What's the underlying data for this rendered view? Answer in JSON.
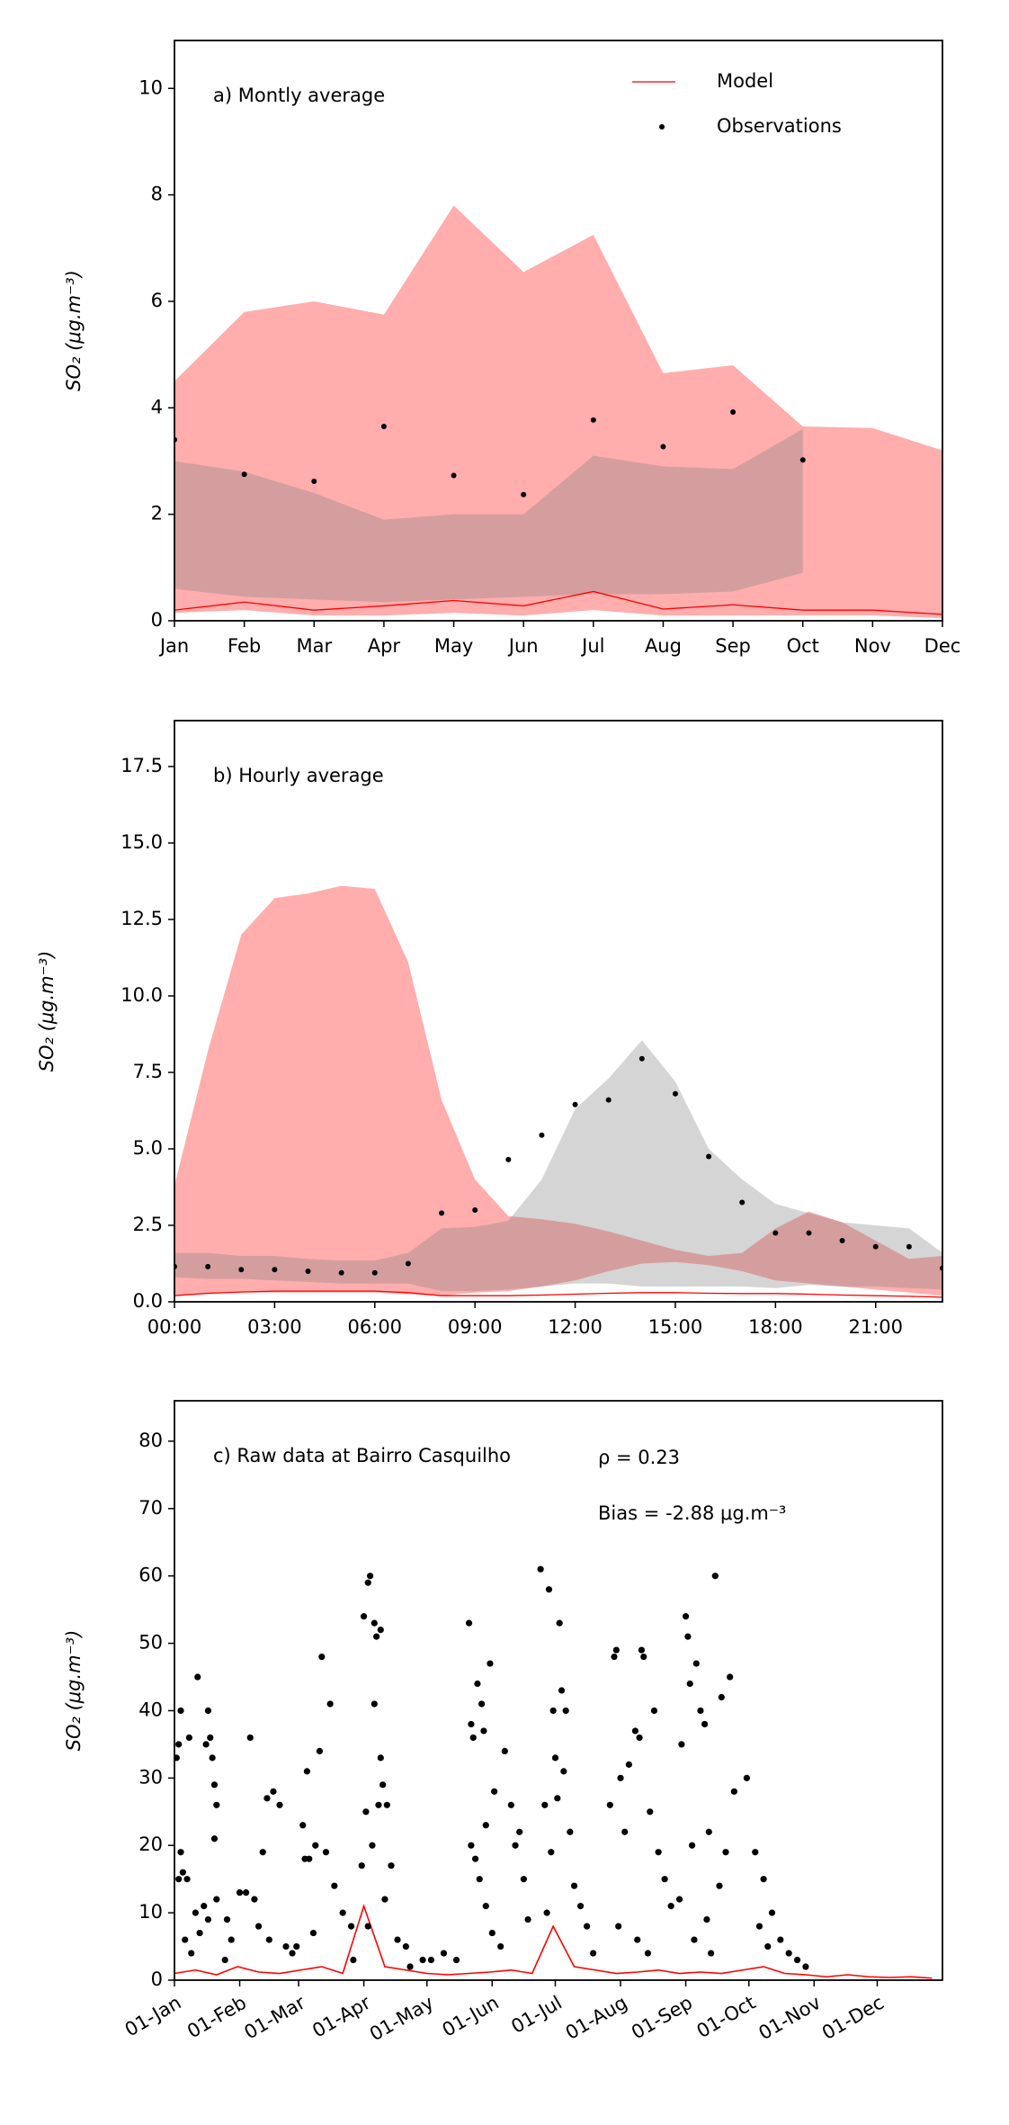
{
  "chart_data": [
    {
      "type": "band_line",
      "title": "a) Montly average",
      "ylabel": "SO₂ (μg.m⁻³)",
      "legend": "upper right",
      "categories": [
        "Jan",
        "Feb",
        "Mar",
        "Apr",
        "May",
        "Jun",
        "Jul",
        "Aug",
        "Sep",
        "Oct",
        "Nov",
        "Dec"
      ],
      "ylim": [
        0,
        10.9
      ],
      "yticks": [
        0,
        2,
        4,
        6,
        8,
        10
      ],
      "series": [
        {
          "kind": "band",
          "color": "#ff0000",
          "upper": [
            4.5,
            5.8,
            6.0,
            5.75,
            7.8,
            6.55,
            7.25,
            4.65,
            4.8,
            3.65,
            3.62,
            3.2
          ],
          "lower": [
            0.15,
            0.2,
            0.1,
            0.1,
            0.15,
            0.1,
            0.2,
            0.1,
            0.1,
            0.1,
            0.1,
            0.05
          ]
        },
        {
          "kind": "band",
          "color": "#808080",
          "upper": [
            3.0,
            2.8,
            2.4,
            1.9,
            2.0,
            2.0,
            3.1,
            2.9,
            2.85,
            3.6,
            null,
            null
          ],
          "lower": [
            0.6,
            0.45,
            0.4,
            0.35,
            0.4,
            0.45,
            0.5,
            0.5,
            0.55,
            0.9,
            null,
            null
          ]
        },
        {
          "kind": "line",
          "name": "Model",
          "color": "#ff0000",
          "values": [
            0.2,
            0.35,
            0.2,
            0.28,
            0.38,
            0.28,
            0.55,
            0.22,
            0.3,
            0.2,
            0.2,
            0.12
          ]
        },
        {
          "kind": "points",
          "name": "Observations",
          "color": "#000000",
          "values": [
            3.4,
            2.75,
            2.62,
            3.65,
            2.73,
            2.37,
            3.77,
            3.27,
            3.92,
            3.02,
            null,
            null
          ]
        }
      ]
    },
    {
      "type": "band_line",
      "title": "b) Hourly average",
      "ylabel": "SO₂ (μg.m⁻³)",
      "x": [
        0,
        1,
        2,
        3,
        4,
        5,
        6,
        7,
        8,
        9,
        10,
        11,
        12,
        13,
        14,
        15,
        16,
        17,
        18,
        19,
        20,
        21,
        22,
        23
      ],
      "xlim": [
        0,
        23
      ],
      "xticks": [
        {
          "value": 0,
          "label": "00:00"
        },
        {
          "value": 3,
          "label": "03:00"
        },
        {
          "value": 6,
          "label": "06:00"
        },
        {
          "value": 9,
          "label": "09:00"
        },
        {
          "value": 12,
          "label": "12:00"
        },
        {
          "value": 15,
          "label": "15:00"
        },
        {
          "value": 18,
          "label": "18:00"
        },
        {
          "value": 21,
          "label": "21:00"
        }
      ],
      "ylim": [
        0,
        19
      ],
      "yticks": [
        {
          "value": 0,
          "label": "0.0"
        },
        2.5,
        {
          "value": 5,
          "label": "5.0"
        },
        7.5,
        {
          "value": 10,
          "label": "10.0"
        },
        12.5,
        {
          "value": 15,
          "label": "15.0"
        },
        17.5
      ],
      "series": [
        {
          "kind": "band",
          "color": "#ff0000",
          "upper": [
            3.8,
            8.2,
            12.0,
            13.2,
            13.35,
            13.6,
            13.5,
            11.1,
            6.6,
            4.0,
            2.8,
            2.7,
            2.55,
            2.3,
            2.0,
            1.7,
            1.5,
            1.6,
            2.4,
            2.95,
            2.6,
            2.0,
            1.4,
            1.5
          ],
          "lower": [
            0.2,
            0.25,
            0.3,
            0.3,
            0.3,
            0.3,
            0.3,
            0.25,
            0.2,
            0.3,
            0.35,
            0.5,
            0.7,
            1.0,
            1.25,
            1.3,
            1.2,
            1.0,
            0.7,
            0.6,
            0.5,
            0.4,
            0.3,
            0.2
          ]
        },
        {
          "kind": "band",
          "color": "#808080",
          "upper": [
            1.6,
            1.6,
            1.5,
            1.5,
            1.4,
            1.35,
            1.35,
            1.6,
            2.4,
            2.45,
            2.65,
            4.0,
            6.3,
            7.3,
            8.55,
            7.2,
            5.0,
            4.0,
            3.2,
            2.9,
            2.6,
            2.5,
            2.4,
            1.6
          ],
          "lower": [
            0.8,
            0.75,
            0.75,
            0.7,
            0.65,
            0.6,
            0.6,
            0.6,
            0.35,
            0.35,
            0.4,
            0.5,
            0.6,
            0.6,
            0.5,
            0.5,
            0.5,
            0.5,
            0.45,
            0.55,
            0.5,
            0.5,
            0.45,
            0.4
          ]
        },
        {
          "kind": "line",
          "color": "#ff0000",
          "values": [
            0.2,
            0.28,
            0.32,
            0.35,
            0.35,
            0.35,
            0.35,
            0.3,
            0.2,
            0.2,
            0.2,
            0.22,
            0.25,
            0.28,
            0.3,
            0.3,
            0.28,
            0.27,
            0.27,
            0.25,
            0.22,
            0.2,
            0.18,
            0.15
          ]
        },
        {
          "kind": "points",
          "color": "#000000",
          "values": [
            1.15,
            1.15,
            1.05,
            1.05,
            1.0,
            0.95,
            0.95,
            1.25,
            2.9,
            3.0,
            4.65,
            5.45,
            6.45,
            6.6,
            7.95,
            6.8,
            4.75,
            3.25,
            2.25,
            2.25,
            2.0,
            1.8,
            1.8,
            1.1
          ]
        }
      ]
    },
    {
      "type": "band_line",
      "title": "c) Raw data at Bairro Casquilho",
      "ylabel": "SO₂ (μg.m⁻³)",
      "annotations": [
        "ρ = 0.23",
        "Bias = -2.88 μg.m⁻³"
      ],
      "xlim": [
        0,
        365
      ],
      "xticks": [
        {
          "value": 0,
          "label": "01-Jan"
        },
        {
          "value": 31,
          "label": "01-Feb"
        },
        {
          "value": 59,
          "label": "01-Mar"
        },
        {
          "value": 90,
          "label": "01-Apr"
        },
        {
          "value": 120,
          "label": "01-May"
        },
        {
          "value": 151,
          "label": "01-Jun"
        },
        {
          "value": 181,
          "label": "01-Jul"
        },
        {
          "value": 212,
          "label": "01-Aug"
        },
        {
          "value": 243,
          "label": "01-Sep"
        },
        {
          "value": 273,
          "label": "01-Oct"
        },
        {
          "value": 304,
          "label": "01-Nov"
        },
        {
          "value": 334,
          "label": "01-Dec"
        }
      ],
      "ylim": [
        0,
        86
      ],
      "yticks": [
        0,
        10,
        20,
        30,
        40,
        50,
        60,
        70,
        80
      ],
      "series": [
        {
          "kind": "line",
          "color": "#ff0000",
          "x": [
            0,
            10,
            20,
            30,
            40,
            50,
            60,
            70,
            80,
            90,
            100,
            110,
            120,
            130,
            140,
            150,
            160,
            170,
            180,
            190,
            200,
            210,
            220,
            230,
            240,
            250,
            260,
            270,
            280,
            290,
            300,
            310,
            320,
            330,
            340,
            350,
            360
          ],
          "values": [
            1,
            1.5,
            0.8,
            2,
            1.2,
            1,
            1.5,
            2,
            1,
            11,
            2,
            1.5,
            1,
            0.8,
            1,
            1.2,
            1.5,
            1,
            8,
            2,
            1.5,
            1,
            1.2,
            1.5,
            1,
            1.2,
            1,
            1.5,
            2,
            1,
            0.8,
            0.5,
            0.8,
            0.5,
            0.4,
            0.5,
            0.3
          ]
        },
        {
          "kind": "points",
          "color": "#000000",
          "x": [
            1,
            2,
            3,
            3,
            2,
            4,
            6,
            7,
            11,
            15,
            16,
            17,
            18,
            19,
            19,
            20,
            10,
            14,
            5,
            8,
            12,
            16,
            20,
            25,
            27,
            24,
            31,
            34,
            38,
            36,
            44,
            47,
            50,
            42,
            40,
            45,
            53,
            56,
            58,
            61,
            62,
            63,
            64,
            67,
            69,
            70,
            72,
            74,
            76,
            80,
            84,
            66,
            85,
            89,
            91,
            90,
            92,
            93,
            95,
            96,
            98,
            95,
            97,
            98,
            99,
            101,
            103,
            94,
            92,
            100,
            106,
            110,
            118,
            112,
            122,
            128,
            134,
            140,
            141,
            142,
            144,
            146,
            147,
            148,
            150,
            152,
            157,
            141,
            143,
            145,
            148,
            151,
            155,
            160,
            162,
            164,
            166,
            168,
            174,
            178,
            180,
            181,
            183,
            184,
            186,
            176,
            179,
            182,
            185,
            188,
            190,
            193,
            196,
            177,
            199,
            207,
            209,
            210,
            212,
            214,
            216,
            219,
            221,
            222,
            223,
            226,
            228,
            230,
            233,
            236,
            211,
            220,
            225,
            241,
            243,
            244,
            245,
            246,
            248,
            250,
            252,
            254,
            257,
            260,
            264,
            266,
            262,
            259,
            253,
            247,
            255,
            240,
            272,
            276,
            280,
            284,
            288,
            292,
            296,
            300,
            278,
            282
          ],
          "values": [
            33,
            35,
            40,
            19,
            15,
            16,
            15,
            36,
            45,
            35,
            40,
            36,
            33,
            29,
            21,
            26,
            10,
            11,
            6,
            4,
            7,
            9,
            12,
            9,
            6,
            3,
            13,
            13,
            12,
            36,
            27,
            28,
            26,
            19,
            8,
            6,
            5,
            4,
            5,
            23,
            18,
            31,
            18,
            20,
            34,
            48,
            19,
            41,
            14,
            10,
            8,
            7,
            3,
            17,
            25,
            54,
            59,
            60,
            53,
            51,
            52,
            41,
            26,
            33,
            29,
            26,
            17,
            20,
            8,
            12,
            6,
            5,
            3,
            2,
            3,
            4,
            3,
            53,
            38,
            36,
            44,
            41,
            37,
            23,
            47,
            28,
            34,
            20,
            18,
            15,
            11,
            7,
            5,
            26,
            20,
            22,
            15,
            9,
            61,
            58,
            40,
            33,
            53,
            43,
            40,
            26,
            19,
            27,
            31,
            22,
            14,
            11,
            8,
            10,
            4,
            26,
            48,
            49,
            30,
            22,
            32,
            37,
            36,
            49,
            48,
            25,
            40,
            19,
            15,
            11,
            8,
            6,
            4,
            35,
            54,
            51,
            44,
            20,
            47,
            40,
            38,
            22,
            60,
            42,
            45,
            28,
            19,
            14,
            9,
            6,
            4,
            12,
            30,
            19,
            15,
            10,
            6,
            4,
            3,
            2,
            8,
            5
          ]
        }
      ]
    }
  ]
}
